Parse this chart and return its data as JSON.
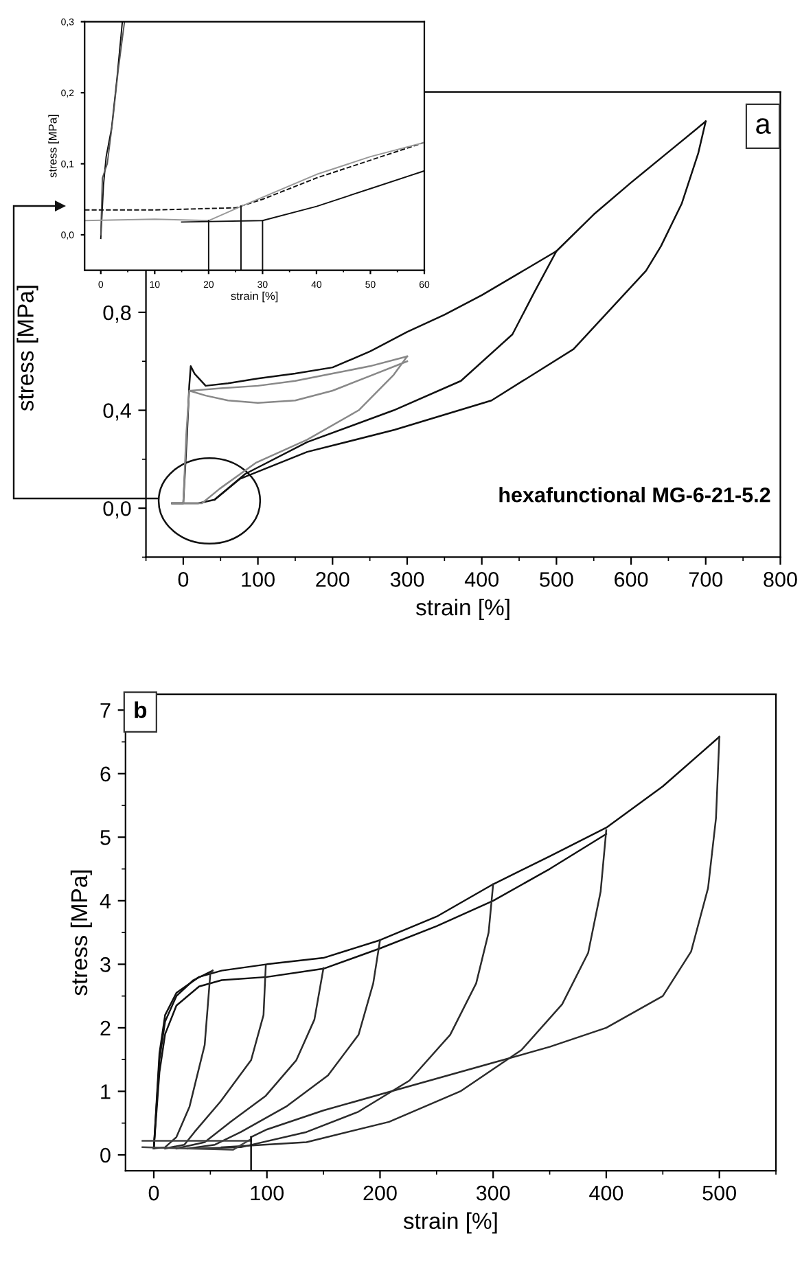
{
  "chart_data": [
    {
      "type": "line",
      "xlabel": "strain [%]",
      "ylabel": "stress [MPa]",
      "xlim": [
        -50,
        800
      ],
      "ylim": [
        -0.2,
        1.7
      ],
      "xticks": [
        {
          "value": -50,
          "label": null
        },
        0,
        {
          "value": 50,
          "label": null
        },
        100,
        {
          "value": 150,
          "label": null
        },
        200,
        {
          "value": 250,
          "label": null
        },
        300,
        {
          "value": 350,
          "label": null
        },
        400,
        {
          "value": 450,
          "label": null
        },
        500,
        {
          "value": 550,
          "label": null
        },
        600,
        {
          "value": 650,
          "label": null
        },
        700,
        {
          "value": 750,
          "label": null
        },
        800
      ],
      "yticks": [
        {
          "value": -0.2,
          "label": null
        },
        {
          "value": 0.0,
          "label": "0,0"
        },
        {
          "value": 0.2,
          "label": null
        },
        {
          "value": 0.4,
          "label": "0,4"
        },
        {
          "value": 0.6,
          "label": null
        },
        {
          "value": 0.8,
          "label": "0,8"
        }
      ],
      "grid": false,
      "legend": false,
      "marker": "none",
      "annotations": [
        "a",
        "hexafunctional MG-6-21-5.2"
      ],
      "series": [
        {
          "color": "#111111",
          "x": [
            -15,
            0,
            5,
            8,
            10,
            15,
            30,
            60,
            100,
            150,
            200,
            250,
            300,
            350,
            400,
            450,
            500,
            550,
            600,
            650,
            700
          ],
          "values": [
            0.02,
            0.02,
            0.3,
            0.5,
            0.58,
            0.55,
            0.5,
            0.51,
            0.53,
            0.55,
            0.575,
            0.64,
            0.72,
            0.79,
            0.87,
            0.96,
            1.05,
            1.2,
            1.33,
            1.455,
            1.58
          ]
        },
        {
          "color": "#111111",
          "x": [
            700,
            690,
            668,
            640,
            620,
            523,
            413,
            283,
            166,
            76,
            42,
            20,
            -15
          ],
          "values": [
            1.58,
            1.45,
            1.245,
            1.07,
            0.97,
            0.65,
            0.44,
            0.32,
            0.23,
            0.12,
            0.035,
            0.02,
            0.02
          ]
        },
        {
          "color": "#111111",
          "x": [
            500,
            470,
            441,
            372,
            282,
            166,
            83,
            42
          ],
          "values": [
            1.05,
            0.88,
            0.71,
            0.52,
            0.4,
            0.27,
            0.14,
            0.035
          ]
        },
        {
          "color": "#888888",
          "x": [
            -15,
            0,
            4,
            8,
            30,
            60,
            100,
            150,
            200,
            250,
            300
          ],
          "values": [
            0.02,
            0.02,
            0.3,
            0.48,
            0.46,
            0.44,
            0.43,
            0.44,
            0.48,
            0.54,
            0.6
          ]
        },
        {
          "color": "#888888",
          "x": [
            10,
            50,
            100,
            150,
            200,
            250,
            300
          ],
          "values": [
            0.48,
            0.49,
            0.5,
            0.52,
            0.55,
            0.58,
            0.62
          ]
        },
        {
          "color": "#888888",
          "x": [
            300,
            282,
            235,
            166,
            97,
            49,
            25,
            -15
          ],
          "values": [
            0.62,
            0.545,
            0.4,
            0.28,
            0.185,
            0.08,
            0.02,
            0.02
          ]
        }
      ]
    },
    {
      "type": "line",
      "xlabel": "strain [%]",
      "ylabel": "stress [MPa]",
      "xlim": [
        -3,
        60
      ],
      "ylim": [
        -0.05,
        0.3
      ],
      "xticks": [
        0,
        {
          "value": 5,
          "label": null
        },
        10,
        {
          "value": 15,
          "label": null
        },
        20,
        {
          "value": 25,
          "label": null
        },
        30,
        {
          "value": 35,
          "label": null
        },
        40,
        {
          "value": 45,
          "label": null
        },
        50,
        {
          "value": 55,
          "label": null
        },
        60
      ],
      "yticks": [
        {
          "value": 0.0,
          "label": "0,0"
        },
        {
          "value": 0.1,
          "label": "0,1"
        },
        {
          "value": 0.2,
          "label": "0,2"
        },
        {
          "value": 0.3,
          "label": "0,3"
        }
      ],
      "grid": false,
      "legend": false,
      "marker": "none",
      "series": [
        {
          "color": "#111111",
          "x": [
            0,
            0.5,
            1,
            2,
            3,
            4
          ],
          "values": [
            -0.005,
            0.07,
            0.11,
            0.15,
            0.22,
            0.3
          ]
        },
        {
          "color": "#555555",
          "x": [
            0,
            0.3,
            1.2,
            2.2,
            3.2,
            4.4
          ],
          "values": [
            0.0,
            0.08,
            0.1,
            0.16,
            0.23,
            0.3
          ]
        },
        {
          "color": "#111111",
          "line_style": "dashed",
          "x": [
            -3,
            10,
            25,
            30,
            40,
            50,
            60
          ],
          "values": [
            0.035,
            0.035,
            0.038,
            0.05,
            0.08,
            0.105,
            0.13
          ]
        },
        {
          "color": "#999999",
          "x": [
            -3,
            10,
            20,
            26,
            40,
            50,
            60
          ],
          "values": [
            0.02,
            0.022,
            0.02,
            0.04,
            0.085,
            0.11,
            0.13
          ]
        },
        {
          "color": "#111111",
          "x": [
            15,
            30,
            40,
            50,
            60
          ],
          "values": [
            0.018,
            0.02,
            0.04,
            0.065,
            0.09
          ]
        },
        {
          "color": "#111111",
          "x": [
            20,
            20
          ],
          "values": [
            -0.05,
            0.02
          ]
        },
        {
          "color": "#111111",
          "x": [
            26,
            26
          ],
          "values": [
            -0.05,
            0.04
          ]
        },
        {
          "color": "#111111",
          "x": [
            30,
            30
          ],
          "values": [
            -0.05,
            0.02
          ]
        }
      ]
    },
    {
      "type": "line",
      "xlabel": "strain [%]",
      "ylabel": "stress [MPa]",
      "xlim": [
        -25,
        550
      ],
      "ylim": [
        -0.25,
        7.25
      ],
      "xticks": [
        0,
        {
          "value": 50,
          "label": null
        },
        100,
        {
          "value": 150,
          "label": null
        },
        200,
        {
          "value": 250,
          "label": null
        },
        300,
        {
          "value": 350,
          "label": null
        },
        400,
        {
          "value": 450,
          "label": null
        },
        500,
        {
          "value": 550,
          "label": null
        }
      ],
      "yticks": [
        0,
        {
          "value": 0.5,
          "label": null
        },
        1,
        {
          "value": 1.5,
          "label": null
        },
        2,
        {
          "value": 2.5,
          "label": null
        },
        3,
        {
          "value": 3.5,
          "label": null
        },
        4,
        {
          "value": 4.5,
          "label": null
        },
        5,
        {
          "value": 5.5,
          "label": null
        },
        6,
        {
          "value": 6.5,
          "label": null
        },
        7
      ],
      "grid": false,
      "legend": false,
      "marker": "none",
      "annotations": [
        "b"
      ],
      "series": [
        {
          "color": "#111111",
          "x": [
            0,
            5,
            10,
            20,
            40,
            60,
            100,
            150,
            200,
            250,
            300,
            350,
            400,
            450,
            500
          ],
          "values": [
            0.1,
            1.6,
            2.2,
            2.55,
            2.8,
            2.9,
            3.0,
            3.1,
            3.38,
            3.75,
            4.26,
            4.7,
            5.15,
            5.8,
            6.58
          ]
        },
        {
          "color": "#111111",
          "x": [
            0,
            5,
            10,
            20,
            40,
            60,
            100,
            150,
            200,
            250,
            300,
            350,
            400
          ],
          "values": [
            0.1,
            1.3,
            1.9,
            2.35,
            2.65,
            2.75,
            2.8,
            2.93,
            3.25,
            3.6,
            4.0,
            4.5,
            5.05
          ]
        },
        {
          "color": "#111111",
          "x": [
            0,
            5,
            10,
            20,
            35,
            52
          ],
          "values": [
            0.1,
            1.5,
            2.1,
            2.5,
            2.75,
            2.9
          ]
        },
        {
          "color": "#2b2b2b",
          "x": [
            52,
            50,
            45,
            31.6,
            20,
            10,
            0
          ],
          "values": [
            2.9,
            2.86,
            1.73,
            0.76,
            0.28,
            0.12,
            0.1
          ]
        },
        {
          "color": "#2b2b2b",
          "x": [
            99,
            97,
            86,
            59,
            36,
            27,
            10
          ],
          "values": [
            2.98,
            2.2,
            1.49,
            0.84,
            0.36,
            0.16,
            0.1
          ]
        },
        {
          "color": "#2b2b2b",
          "x": [
            150,
            142,
            126,
            99,
            68,
            45,
            20
          ],
          "values": [
            2.94,
            2.13,
            1.49,
            0.93,
            0.52,
            0.2,
            0.1
          ]
        },
        {
          "color": "#2b2b2b",
          "x": [
            200,
            194,
            181,
            154,
            117,
            77,
            54,
            30
          ],
          "values": [
            3.38,
            2.7,
            1.89,
            1.25,
            0.76,
            0.36,
            0.16,
            0.1
          ]
        },
        {
          "color": "#2b2b2b",
          "x": [
            300,
            296,
            285,
            262,
            226,
            181,
            135,
            77,
            40
          ],
          "values": [
            4.26,
            3.5,
            2.7,
            1.89,
            1.17,
            0.68,
            0.36,
            0.12,
            0.1
          ]
        },
        {
          "color": "#2b2b2b",
          "x": [
            400,
            395,
            384,
            361,
            325,
            271,
            208,
            135,
            60
          ],
          "values": [
            5.11,
            4.14,
            3.18,
            2.37,
            1.65,
            1.0,
            0.52,
            0.2,
            0.12
          ]
        },
        {
          "color": "#2b2b2b",
          "x": [
            500,
            497,
            490,
            475,
            450,
            400,
            350,
            300,
            200,
            150,
            100,
            86
          ],
          "values": [
            6.58,
            5.3,
            4.2,
            3.2,
            2.5,
            2.0,
            1.7,
            1.45,
            0.95,
            0.7,
            0.4,
            0.28
          ]
        },
        {
          "color": "#444444",
          "x": [
            -10,
            86
          ],
          "values": [
            0.22,
            0.22
          ]
        },
        {
          "color": "#444444",
          "x": [
            -10,
            70,
            86
          ],
          "values": [
            0.12,
            0.08,
            0.25
          ]
        },
        {
          "color": "#111111",
          "x": [
            86,
            86
          ],
          "values": [
            -0.25,
            0.28
          ]
        }
      ]
    }
  ]
}
